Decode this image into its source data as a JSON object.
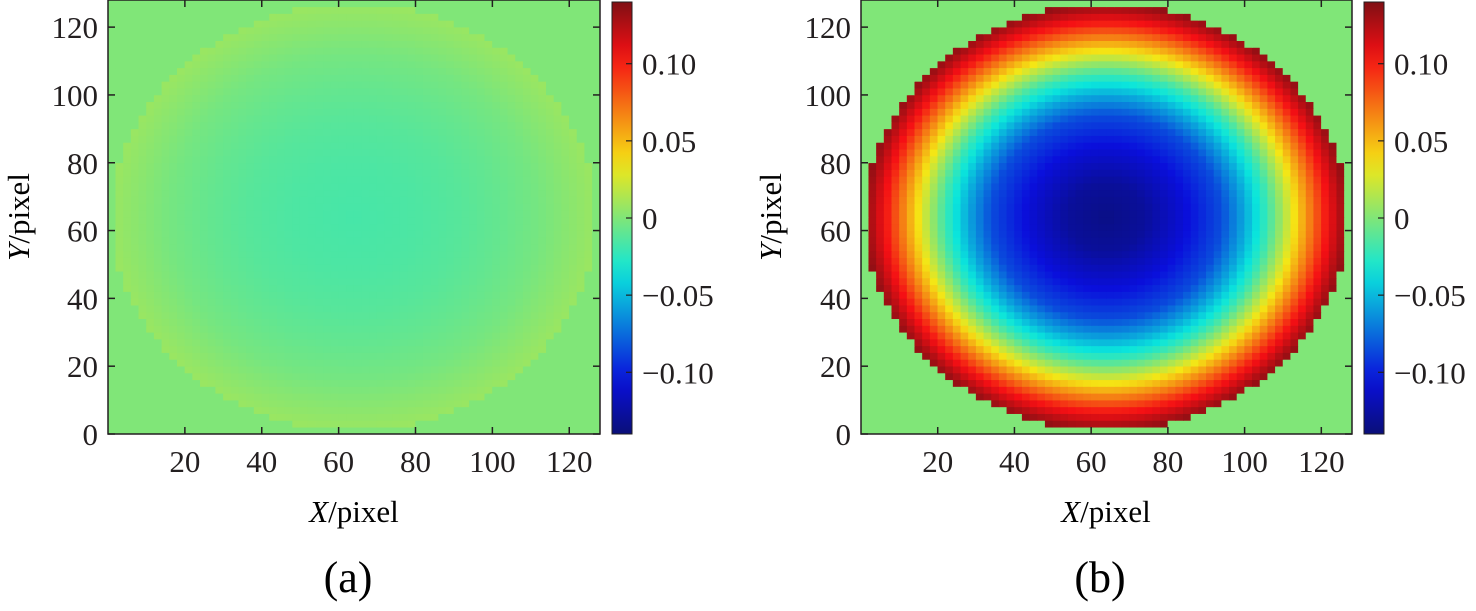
{
  "figure": {
    "panels": [
      {
        "caption": "(a)",
        "xlabel_var": "X",
        "xlabel_unit": "/pixel",
        "ylabel_var": "Y",
        "ylabel_unit": "/pixel",
        "colorbar_ticks": [
          "0.10",
          "0.05",
          "0",
          "−0.05",
          "−0.10"
        ]
      },
      {
        "caption": "(b)",
        "xlabel_var": "X",
        "xlabel_unit": "/pixel",
        "ylabel_var": "Y",
        "ylabel_unit": "/pixel",
        "colorbar_ticks": [
          "0.10",
          "0.05",
          "0",
          "−0.05",
          "−0.10"
        ]
      }
    ]
  },
  "chart_data": [
    {
      "type": "heatmap",
      "panel": "(a)",
      "xlabel": "X/pixel",
      "ylabel": "Y/pixel",
      "xlim": [
        0,
        128
      ],
      "ylim": [
        0,
        128
      ],
      "xticks": [
        20,
        40,
        60,
        80,
        100,
        120
      ],
      "yticks": [
        0,
        20,
        40,
        60,
        80,
        100,
        120
      ],
      "colorbar": {
        "range": [
          -0.14,
          0.14
        ],
        "ticks": [
          0.1,
          0.05,
          0,
          -0.05,
          -0.1
        ]
      },
      "aperture": {
        "center": [
          64,
          64
        ],
        "radius": 63
      },
      "outside_value": 0,
      "profile": {
        "r": [
          0,
          16,
          28,
          38,
          48,
          56,
          63
        ],
        "v": [
          -0.017,
          -0.015,
          -0.012,
          -0.008,
          -0.003,
          0.003,
          0.008
        ]
      }
    },
    {
      "type": "heatmap",
      "panel": "(b)",
      "xlabel": "X/pixel",
      "ylabel": "Y/pixel",
      "xlim": [
        0,
        128
      ],
      "ylim": [
        0,
        128
      ],
      "xticks": [
        20,
        40,
        60,
        80,
        100,
        120
      ],
      "yticks": [
        0,
        20,
        40,
        60,
        80,
        100,
        120
      ],
      "colorbar": {
        "range": [
          -0.14,
          0.14
        ],
        "ticks": [
          0.1,
          0.05,
          0,
          -0.05,
          -0.1
        ]
      },
      "aperture": {
        "center": [
          64,
          64
        ],
        "radius": 63
      },
      "outside_value": 0,
      "profile": {
        "r": [
          0,
          10,
          20,
          30,
          36,
          42,
          47,
          52,
          57,
          61,
          63
        ],
        "v": [
          -0.135,
          -0.128,
          -0.108,
          -0.085,
          -0.055,
          -0.02,
          0.02,
          0.06,
          0.1,
          0.125,
          0.135
        ]
      }
    }
  ]
}
